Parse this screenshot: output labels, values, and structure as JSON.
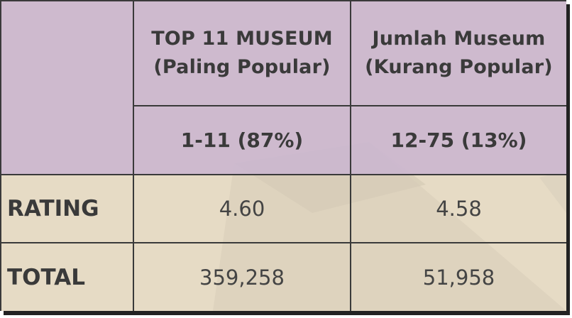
{
  "chart_data": {
    "type": "table",
    "columns": [
      {
        "header_line1": "TOP 11 MUSEUM",
        "header_line2": "(Paling Popular)",
        "range": "1-11 (87%)"
      },
      {
        "header_line1": "Jumlah Museum",
        "header_line2": "(Kurang Popular)",
        "range": "12-75 (13%)"
      }
    ],
    "rows": [
      {
        "label": "RATING",
        "values": [
          "4.60",
          "4.58"
        ]
      },
      {
        "label": "TOTAL",
        "values": [
          "359,258",
          "51,958"
        ]
      }
    ]
  },
  "colors": {
    "header_bg": "#ccb9ce",
    "body_bg": "#e7dcc6",
    "text": "#3a3a3a",
    "border": "#3a3a3a"
  }
}
